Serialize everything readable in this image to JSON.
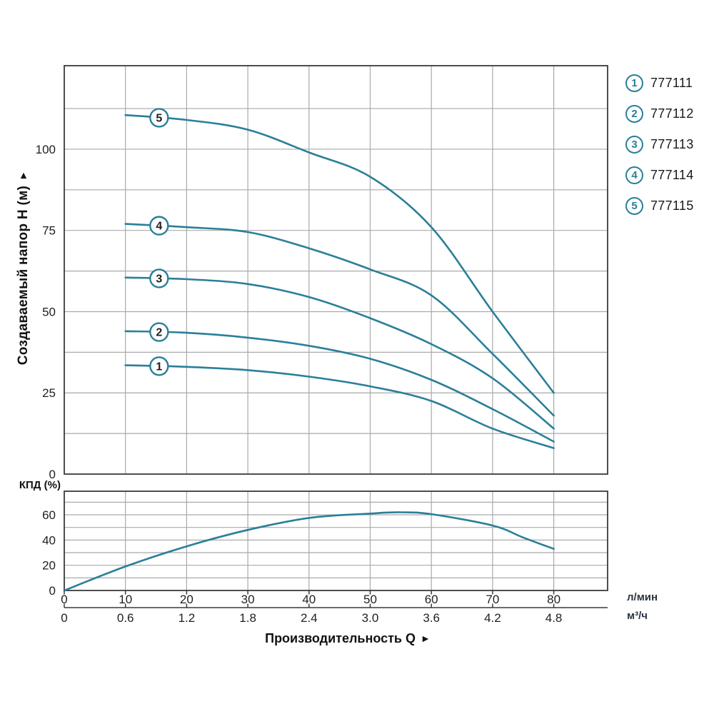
{
  "page": {
    "background": "#ffffff"
  },
  "colors": {
    "curve": "#2a7f99",
    "grid": "#a9a9a9",
    "border": "#3a3a3a",
    "tick_text": "#1f1f1f"
  },
  "labels": {
    "y_axis_title": "Создаваемый напор H (м)",
    "y_axis_arrow": "►",
    "x_axis_title": "Производительность Q",
    "x_axis_arrow": "►",
    "efficiency_axis_label": "КПД (%)",
    "unit_flow_lmin": "л/мин",
    "unit_flow_m3h": "м³/ч"
  },
  "legend": {
    "items": [
      {
        "num": "1",
        "model": "777111"
      },
      {
        "num": "2",
        "model": "777112"
      },
      {
        "num": "3",
        "model": "777113"
      },
      {
        "num": "4",
        "model": "777114"
      },
      {
        "num": "5",
        "model": "777115"
      }
    ]
  },
  "chart_data": [
    {
      "type": "line",
      "title": "Head vs flow curves",
      "xlabel": "Производительность Q",
      "ylabel": "Создаваемый напор H (м)",
      "x_units": [
        "л/мин",
        "м³/ч"
      ],
      "xlim": [
        0,
        88.8
      ],
      "ylim": [
        0,
        125.7
      ],
      "x_grid": [
        10,
        20,
        30,
        40,
        50,
        60,
        70,
        80
      ],
      "y_grid": [
        12.5,
        25,
        37.5,
        50,
        62.5,
        75,
        87.5,
        100,
        112.5
      ],
      "y_ticks": [
        0,
        25,
        50,
        75,
        100
      ],
      "x_ticks_q": [
        0,
        10,
        20,
        30,
        40,
        50,
        60,
        70,
        80
      ],
      "x_ticks_lmin": [
        "0",
        "10",
        "20",
        "30",
        "40",
        "50",
        "60",
        "70",
        "80"
      ],
      "x_ticks_m3h": [
        "0",
        "0.6",
        "1.2",
        "1.8",
        "2.4",
        "3.0",
        "3.6",
        "4.2",
        "4.8"
      ],
      "series_label_q": 15.5,
      "legend_position": "right",
      "grid": true,
      "series": [
        {
          "name": "777111",
          "label": "1",
          "points": [
            [
              10,
              33.5
            ],
            [
              20,
              33
            ],
            [
              30,
              32
            ],
            [
              40,
              30
            ],
            [
              50,
              27
            ],
            [
              60,
              22.5
            ],
            [
              70,
              14
            ],
            [
              80,
              8
            ]
          ]
        },
        {
          "name": "777112",
          "label": "2",
          "points": [
            [
              10,
              44
            ],
            [
              20,
              43.5
            ],
            [
              30,
              42
            ],
            [
              40,
              39.5
            ],
            [
              50,
              35.5
            ],
            [
              60,
              29
            ],
            [
              70,
              20
            ],
            [
              80,
              10
            ]
          ]
        },
        {
          "name": "777113",
          "label": "3",
          "points": [
            [
              10,
              60.5
            ],
            [
              20,
              60
            ],
            [
              30,
              58.5
            ],
            [
              40,
              54.5
            ],
            [
              50,
              48
            ],
            [
              60,
              40
            ],
            [
              70,
              29.5
            ],
            [
              80,
              14
            ]
          ]
        },
        {
          "name": "777114",
          "label": "4",
          "points": [
            [
              10,
              77
            ],
            [
              20,
              76
            ],
            [
              30,
              74.5
            ],
            [
              40,
              69.5
            ],
            [
              50,
              63
            ],
            [
              60,
              55
            ],
            [
              70,
              37
            ],
            [
              80,
              18
            ]
          ]
        },
        {
          "name": "777115",
          "label": "5",
          "points": [
            [
              10,
              110.5
            ],
            [
              20,
              109
            ],
            [
              30,
              106
            ],
            [
              40,
              99
            ],
            [
              50,
              91.5
            ],
            [
              60,
              76
            ],
            [
              70,
              50
            ],
            [
              80,
              25
            ]
          ]
        }
      ]
    },
    {
      "type": "line",
      "title": "Efficiency curve",
      "ylabel": "КПД (%)",
      "xlim": [
        0,
        88.8
      ],
      "ylim": [
        0,
        78.7
      ],
      "y_grid": [
        10,
        20,
        30,
        40,
        50,
        60,
        70
      ],
      "x_grid": [
        10,
        20,
        30,
        40,
        50,
        60,
        70,
        80
      ],
      "y_ticks": [
        0,
        20,
        40,
        60
      ],
      "grid": true,
      "series": [
        {
          "name": "КПД",
          "points": [
            [
              0,
              0
            ],
            [
              10,
              19
            ],
            [
              20,
              35
            ],
            [
              30,
              48
            ],
            [
              40,
              57.5
            ],
            [
              50,
              61
            ],
            [
              55,
              62
            ],
            [
              60,
              60.5
            ],
            [
              70,
              51.5
            ],
            [
              75,
              42
            ],
            [
              80,
              33
            ]
          ]
        }
      ]
    }
  ]
}
